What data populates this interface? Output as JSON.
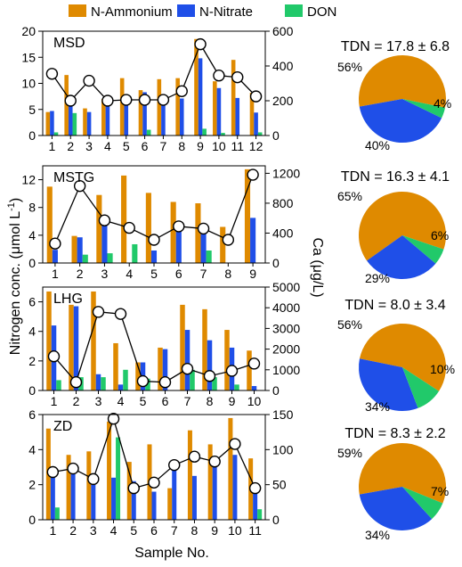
{
  "legend": {
    "items": [
      {
        "label": "N-Ammonium",
        "color": "#DF8A00"
      },
      {
        "label": "N-Nitrate",
        "color": "#1F4FE8"
      },
      {
        "label": "DON",
        "color": "#21C96A"
      }
    ]
  },
  "axes": {
    "ylabel_left": "Nitrogen conc. (μmol L",
    "ylabel_left_sup": "-1",
    "ylabel_left_end": ")",
    "ylabel_right": "Ca (μg/L)",
    "xlabel": "Sample No."
  },
  "chart_data": [
    {
      "type": "bar",
      "title": "MSD",
      "categories": [
        "1",
        "2",
        "3",
        "4",
        "5",
        "6",
        "7",
        "8",
        "9",
        "10",
        "11",
        "12"
      ],
      "ylim": [
        0,
        20
      ],
      "yticks": [
        0,
        5,
        10,
        15,
        20
      ],
      "y2lim": [
        0,
        600
      ],
      "y2ticks": [
        0,
        200,
        400,
        600
      ],
      "series": [
        {
          "name": "N-Ammonium",
          "values": [
            4.5,
            11.6,
            5.2,
            7.0,
            11.0,
            8.7,
            10.8,
            11.0,
            18.5,
            10.4,
            14.5,
            8.2
          ]
        },
        {
          "name": "N-Nitrate",
          "values": [
            4.7,
            7.2,
            4.5,
            5.9,
            7.7,
            8.3,
            7.9,
            7.1,
            14.8,
            9.1,
            7.2,
            4.4
          ]
        },
        {
          "name": "DON",
          "values": [
            0.6,
            4.3,
            0.0,
            0.0,
            0.0,
            1.1,
            0.0,
            0.0,
            1.3,
            0.5,
            0.0,
            0.6
          ]
        }
      ],
      "ca": [
        355,
        200,
        315,
        200,
        205,
        205,
        205,
        255,
        525,
        345,
        335,
        225
      ],
      "pie": {
        "tdn": "TDN = 17.8 ± 6.8",
        "slices": [
          {
            "name": "N-Ammonium",
            "value": 56,
            "label": "56%"
          },
          {
            "name": "N-Nitrate",
            "value": 40,
            "label": "40%"
          },
          {
            "name": "DON",
            "value": 4,
            "label": "4%"
          }
        ]
      }
    },
    {
      "type": "bar",
      "title": "MSTG",
      "categories": [
        "1",
        "2",
        "3",
        "4",
        "5",
        "6",
        "7",
        "8",
        "9"
      ],
      "ylim": [
        0,
        14
      ],
      "yticks": [
        0,
        4,
        8,
        12
      ],
      "y2lim": [
        0,
        1300
      ],
      "y2ticks": [
        0,
        400,
        800,
        1200
      ],
      "series": [
        {
          "name": "N-Ammonium",
          "values": [
            11.0,
            3.9,
            9.8,
            12.6,
            10.1,
            8.8,
            8.6,
            5.2,
            13.5
          ]
        },
        {
          "name": "N-Nitrate",
          "values": [
            1.9,
            3.7,
            6.0,
            0.0,
            1.8,
            5.0,
            5.2,
            0.0,
            6.5
          ]
        },
        {
          "name": "DON",
          "values": [
            0.0,
            1.2,
            1.4,
            2.7,
            0.0,
            0.0,
            1.8,
            0.0,
            0.0
          ]
        }
      ],
      "ca": [
        260,
        1030,
        570,
        470,
        310,
        490,
        460,
        310,
        1180
      ],
      "pie": {
        "tdn": "TDN = 16.3 ± 4.1",
        "slices": [
          {
            "name": "N-Ammonium",
            "value": 65,
            "label": "65%"
          },
          {
            "name": "N-Nitrate",
            "value": 29,
            "label": "29%"
          },
          {
            "name": "DON",
            "value": 6,
            "label": "6%"
          }
        ]
      }
    },
    {
      "type": "bar",
      "title": "LHG",
      "categories": [
        "1",
        "2",
        "3",
        "4",
        "5",
        "6",
        "7",
        "8",
        "9",
        "10"
      ],
      "ylim": [
        0,
        7
      ],
      "yticks": [
        0,
        2,
        4,
        6
      ],
      "y2lim": [
        0,
        5000
      ],
      "y2ticks": [
        0,
        1000,
        2000,
        3000,
        4000,
        5000
      ],
      "series": [
        {
          "name": "N-Ammonium",
          "values": [
            6.7,
            5.8,
            6.7,
            3.2,
            1.9,
            2.9,
            5.8,
            5.5,
            4.1,
            2.7
          ]
        },
        {
          "name": "N-Nitrate",
          "values": [
            4.4,
            5.7,
            1.1,
            0.4,
            1.9,
            2.8,
            4.1,
            3.4,
            2.9,
            0.3
          ]
        },
        {
          "name": "DON",
          "values": [
            0.7,
            0.9,
            0.9,
            1.4,
            0.8,
            0.0,
            1.4,
            0.9,
            0.4,
            0.0
          ]
        }
      ],
      "ca": [
        1650,
        400,
        3800,
        3700,
        450,
        400,
        1050,
        700,
        950,
        1300
      ],
      "pie": {
        "tdn": "TDN = 8.0 ± 3.4",
        "slices": [
          {
            "name": "N-Ammonium",
            "value": 56,
            "label": "56%"
          },
          {
            "name": "N-Nitrate",
            "value": 34,
            "label": "34%"
          },
          {
            "name": "DON",
            "value": 10,
            "label": "10%"
          }
        ]
      }
    },
    {
      "type": "bar",
      "title": "ZD",
      "categories": [
        "1",
        "2",
        "3",
        "4",
        "5",
        "6",
        "7",
        "8",
        "9",
        "10",
        "11"
      ],
      "ylim": [
        0,
        6
      ],
      "yticks": [
        0,
        2,
        4,
        6
      ],
      "y2lim": [
        0,
        150
      ],
      "y2ticks": [
        0,
        50,
        100,
        150
      ],
      "series": [
        {
          "name": "N-Ammonium",
          "values": [
            5.2,
            3.7,
            3.9,
            5.6,
            3.3,
            4.3,
            1.8,
            5.1,
            4.3,
            5.8,
            3.5
          ]
        },
        {
          "name": "N-Nitrate",
          "values": [
            2.8,
            2.6,
            2.6,
            2.4,
            2.2,
            1.6,
            3.0,
            2.5,
            3.4,
            3.7,
            1.6
          ]
        },
        {
          "name": "DON",
          "values": [
            0.7,
            0.0,
            0.0,
            4.7,
            0.0,
            0.0,
            0.0,
            0.0,
            0.0,
            0.0,
            0.6
          ]
        }
      ],
      "ca": [
        68,
        73,
        58,
        144,
        45,
        53,
        78,
        90,
        83,
        108,
        45
      ],
      "pie": {
        "tdn": "TDN = 8.3 ± 2.2",
        "slices": [
          {
            "name": "N-Ammonium",
            "value": 59,
            "label": "59%"
          },
          {
            "name": "N-Nitrate",
            "value": 34,
            "label": "34%"
          },
          {
            "name": "DON",
            "value": 7,
            "label": "7%"
          }
        ]
      }
    }
  ]
}
